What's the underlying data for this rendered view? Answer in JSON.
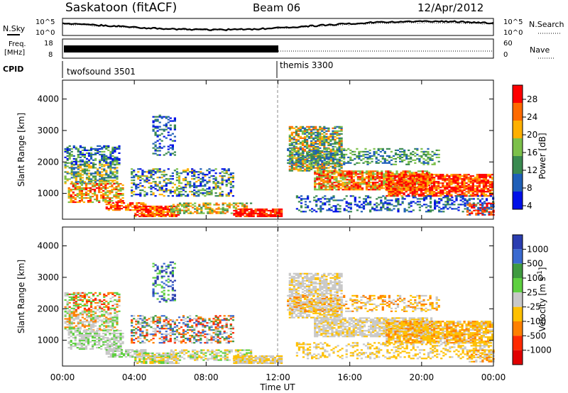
{
  "header": {
    "site": "Saskatoon (fitACF)",
    "beam": "Beam 06",
    "date": "12/Apr/2012"
  },
  "side_labels": {
    "nsky": "N.Sky",
    "freq": "Freq.",
    "mhz": "[MHz]",
    "cpid": "CPID",
    "nsearch": "N.Search",
    "nave": "Nave"
  },
  "noise_axis": {
    "top": "10^5",
    "bottom": "10^0"
  },
  "freq_axis": {
    "top": "18",
    "bottom": "8"
  },
  "nave_axis": {
    "top": "60",
    "bottom": "0"
  },
  "cpid": [
    {
      "label": "twofsound 3501",
      "start_h": 0
    },
    {
      "label": "themis 3300",
      "start_h": 12
    }
  ],
  "chart_data": [
    {
      "type": "heatmap",
      "name": "power",
      "ylabel": "Slant Range [km]",
      "xlabel": "Time UT",
      "xlim_h": [
        0,
        24
      ],
      "ylim_km": [
        180,
        4600
      ],
      "x_ticks": [
        "00:00",
        "04:00",
        "08:00",
        "12:00",
        "16:00",
        "20:00",
        "00:00"
      ],
      "y_ticks": [
        1000,
        2000,
        3000,
        4000
      ],
      "colorbar": {
        "label": "Power [dB]",
        "ticks": [
          "28",
          "24",
          "20",
          "16",
          "12",
          "8",
          "4"
        ],
        "colors": [
          "#ff0000",
          "#ff6a00",
          "#ffb000",
          "#7cc04a",
          "#3a8a50",
          "#1f5fb8",
          "#0010e8"
        ]
      }
    },
    {
      "type": "heatmap",
      "name": "velocity",
      "ylabel": "Slant Range [km]",
      "xlabel": "Time UT",
      "xlim_h": [
        0,
        24
      ],
      "ylim_km": [
        180,
        4600
      ],
      "x_ticks": [
        "00:00",
        "04:00",
        "08:00",
        "12:00",
        "16:00",
        "20:00",
        "00:00"
      ],
      "y_ticks": [
        1000,
        2000,
        3000,
        4000
      ],
      "colorbar": {
        "label": "Velocity [m s",
        "label_sup": "-1",
        "label_end": "]",
        "ticks": [
          "1000",
          "500",
          "100",
          "25",
          "-25",
          "-100",
          "-500",
          "-1000"
        ],
        "colors": [
          "#2a3db0",
          "#3a6ad0",
          "#3f9a40",
          "#5ed040",
          "#c8c8c8",
          "#ffc000",
          "#ff8000",
          "#ff2a00",
          "#e00000"
        ]
      }
    }
  ],
  "colors": {
    "grey": "#c8c8c8",
    "frame": "#000000"
  }
}
